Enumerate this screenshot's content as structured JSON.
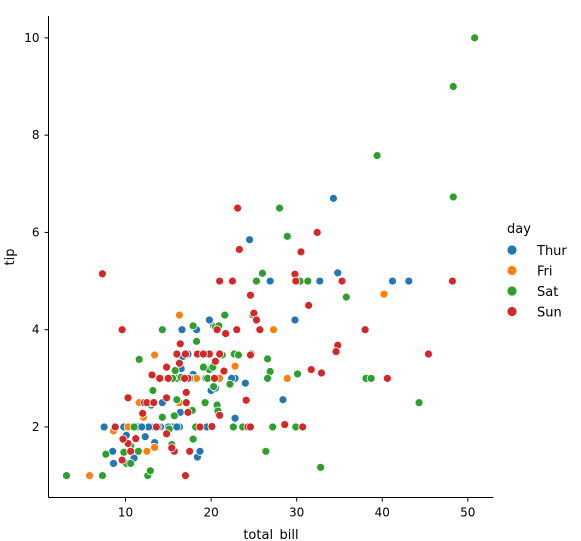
{
  "chart_data": {
    "type": "scatter",
    "title": "",
    "xlabel": "total_bill",
    "ylabel": "tip",
    "xlim": [
      1.0,
      53.0
    ],
    "ylim": [
      0.55,
      10.45
    ],
    "xticks": [
      10,
      20,
      30,
      40,
      50
    ],
    "yticks": [
      2,
      4,
      6,
      8,
      10
    ],
    "grid": false,
    "legend": {
      "title": "day",
      "placement": "right"
    },
    "series": [
      {
        "name": "Thur",
        "color": "#1f77b4",
        "points": [
          [
            34.3,
            6.7
          ],
          [
            41.2,
            5.0
          ],
          [
            43.1,
            5.0
          ],
          [
            24.5,
            5.85
          ],
          [
            26.9,
            5.0
          ],
          [
            32.7,
            5.0
          ],
          [
            34.8,
            5.17
          ],
          [
            20.3,
            4.08
          ],
          [
            18.3,
            4.0
          ],
          [
            19.8,
            4.2
          ],
          [
            16.6,
            4.0
          ],
          [
            29.8,
            4.2
          ],
          [
            17.3,
            3.5
          ],
          [
            16.5,
            3.2
          ],
          [
            19.4,
            3.0
          ],
          [
            22.8,
            3.0
          ],
          [
            17.9,
            3.08
          ],
          [
            20.3,
            3.0
          ],
          [
            24.0,
            2.9
          ],
          [
            20.0,
            2.75
          ],
          [
            28.4,
            2.56
          ],
          [
            16.4,
            2.3
          ],
          [
            22.8,
            2.18
          ],
          [
            18.4,
            1.38
          ],
          [
            18.7,
            1.5
          ],
          [
            16.3,
            2.0
          ],
          [
            15.5,
            2.0
          ],
          [
            13.0,
            2.0
          ],
          [
            12.0,
            2.0
          ],
          [
            11.4,
            2.0
          ],
          [
            10.3,
            2.0
          ],
          [
            9.8,
            2.0
          ],
          [
            7.5,
            2.0
          ],
          [
            8.5,
            1.5
          ],
          [
            10.1,
            1.83
          ],
          [
            8.6,
            1.25
          ],
          [
            12.7,
            2.0
          ],
          [
            13.4,
            1.58
          ],
          [
            13.4,
            1.68
          ],
          [
            10.7,
            2.0
          ],
          [
            11.9,
            2.0
          ],
          [
            14.3,
            2.5
          ],
          [
            12.9,
            2.5
          ],
          [
            14.1,
            2.0
          ],
          [
            15.0,
            2.0
          ],
          [
            13.8,
            2.0
          ],
          [
            16.0,
            2.0
          ],
          [
            12.3,
            1.8
          ],
          [
            9.6,
            1.75
          ],
          [
            11.6,
            1.5
          ],
          [
            19.5,
            2.0
          ],
          [
            17.0,
            2.5
          ],
          [
            16.9,
            3.0
          ],
          [
            24.0,
            2.0
          ],
          [
            11.0,
            1.36
          ],
          [
            16.7,
            3.45
          ],
          [
            17.8,
            3.0
          ],
          [
            20.5,
            2.8
          ],
          [
            15.4,
            3.0
          ],
          [
            22.4,
            3.0
          ]
        ]
      },
      {
        "name": "Fri",
        "color": "#ff7f0e",
        "points": [
          [
            16.3,
            4.3
          ],
          [
            40.2,
            4.73
          ],
          [
            27.3,
            4.0
          ],
          [
            22.8,
            3.25
          ],
          [
            28.9,
            3.0
          ],
          [
            15.4,
            3.0
          ],
          [
            21.0,
            3.0
          ],
          [
            13.4,
            3.48
          ],
          [
            16.3,
            2.5
          ],
          [
            13.3,
            1.58
          ],
          [
            12.5,
            1.5
          ],
          [
            10.3,
            2.0
          ],
          [
            8.6,
            1.92
          ],
          [
            5.8,
            1.0
          ],
          [
            12.1,
            2.2
          ],
          [
            11.6,
            2.5
          ],
          [
            15.9,
            3.0
          ],
          [
            18.3,
            3.0
          ],
          [
            13.4,
            1.58
          ]
        ]
      },
      {
        "name": "Sat",
        "color": "#2ca02c",
        "points": [
          [
            50.8,
            10.0
          ],
          [
            48.3,
            9.0
          ],
          [
            48.3,
            6.73
          ],
          [
            39.4,
            7.58
          ],
          [
            28.0,
            6.5
          ],
          [
            28.9,
            5.92
          ],
          [
            26.0,
            5.16
          ],
          [
            25.3,
            5.0
          ],
          [
            30.4,
            5.0
          ],
          [
            35.8,
            4.67
          ],
          [
            24.9,
            4.3
          ],
          [
            21.6,
            4.3
          ],
          [
            26.6,
            3.4
          ],
          [
            20.5,
            4.06
          ],
          [
            20.9,
            4.08
          ],
          [
            17.9,
            4.08
          ],
          [
            14.3,
            4.0
          ],
          [
            21.3,
            3.48
          ],
          [
            22.7,
            3.5
          ],
          [
            18.3,
            3.76
          ],
          [
            11.6,
            3.39
          ],
          [
            23.2,
            3.48
          ],
          [
            15.8,
            3.16
          ],
          [
            19.8,
            3.18
          ],
          [
            20.2,
            3.23
          ],
          [
            26.9,
            3.14
          ],
          [
            30.1,
            3.09
          ],
          [
            38.1,
            3.0
          ],
          [
            38.7,
            3.0
          ],
          [
            16.0,
            3.0
          ],
          [
            17.5,
            3.0
          ],
          [
            19.6,
            3.0
          ],
          [
            14.2,
            3.0
          ],
          [
            15.5,
            3.0
          ],
          [
            22.2,
            2.88
          ],
          [
            20.3,
            2.83
          ],
          [
            19.3,
            2.5
          ],
          [
            13.2,
            2.75
          ],
          [
            13.0,
            2.45
          ],
          [
            12.5,
            2.5
          ],
          [
            14.3,
            2.2
          ],
          [
            15.7,
            2.23
          ],
          [
            17.8,
            2.34
          ],
          [
            20.7,
            2.45
          ],
          [
            13.1,
            2.5
          ],
          [
            16.0,
            2.56
          ],
          [
            44.3,
            2.5
          ],
          [
            23.7,
            2.0
          ],
          [
            27.2,
            2.0
          ],
          [
            29.9,
            2.0
          ],
          [
            22.6,
            2.0
          ],
          [
            18.2,
            2.0
          ],
          [
            11.0,
            2.0
          ],
          [
            10.6,
            1.61
          ],
          [
            9.8,
            1.48
          ],
          [
            10.3,
            1.66
          ],
          [
            11.5,
            1.5
          ],
          [
            7.7,
            1.44
          ],
          [
            7.3,
            1.0
          ],
          [
            3.1,
            1.0
          ],
          [
            12.6,
            1.0
          ],
          [
            12.9,
            1.1
          ],
          [
            32.8,
            1.17
          ],
          [
            26.4,
            1.5
          ],
          [
            17.9,
            1.75
          ],
          [
            15.4,
            1.64
          ],
          [
            10.1,
            1.25
          ],
          [
            10.6,
            1.25
          ],
          [
            13.9,
            3.0
          ],
          [
            16.5,
            3.02
          ],
          [
            19.1,
            3.23
          ],
          [
            26.6,
            3.0
          ],
          [
            31.3,
            5.0
          ],
          [
            15.1,
            1.96
          ],
          [
            20.8,
            2.33
          ]
        ]
      },
      {
        "name": "Sun",
        "color": "#d62728",
        "points": [
          [
            23.1,
            6.5
          ],
          [
            32.4,
            6.0
          ],
          [
            23.3,
            5.65
          ],
          [
            30.5,
            5.6
          ],
          [
            29.8,
            5.14
          ],
          [
            29.9,
            5.0
          ],
          [
            35.3,
            5.0
          ],
          [
            48.2,
            5.0
          ],
          [
            21.0,
            5.0
          ],
          [
            22.5,
            5.0
          ],
          [
            7.3,
            5.15
          ],
          [
            24.6,
            4.71
          ],
          [
            31.4,
            4.5
          ],
          [
            25.0,
            4.34
          ],
          [
            38.0,
            4.0
          ],
          [
            23.0,
            4.0
          ],
          [
            25.7,
            4.0
          ],
          [
            20.7,
            4.0
          ],
          [
            9.6,
            4.0
          ],
          [
            21.7,
            3.92
          ],
          [
            34.8,
            3.68
          ],
          [
            16.4,
            3.71
          ],
          [
            34.6,
            3.55
          ],
          [
            45.4,
            3.5
          ],
          [
            24.7,
            3.5
          ],
          [
            21.0,
            3.5
          ],
          [
            19.8,
            3.5
          ],
          [
            18.4,
            3.5
          ],
          [
            17.0,
            3.5
          ],
          [
            15.9,
            3.5
          ],
          [
            40.6,
            3.0
          ],
          [
            24.6,
            3.48
          ],
          [
            16.3,
            3.31
          ],
          [
            14.8,
            3.23
          ],
          [
            21.5,
            3.15
          ],
          [
            31.7,
            3.18
          ],
          [
            32.9,
            3.11
          ],
          [
            20.4,
            3.0
          ],
          [
            17.3,
            3.0
          ],
          [
            14.0,
            3.0
          ],
          [
            13.1,
            3.07
          ],
          [
            16.9,
            3.0
          ],
          [
            15.0,
            3.0
          ],
          [
            17.1,
            2.71
          ],
          [
            10.3,
            2.6
          ],
          [
            17.1,
            2.5
          ],
          [
            12.2,
            2.5
          ],
          [
            24.1,
            2.55
          ],
          [
            21.0,
            2.24
          ],
          [
            14.8,
            2.6
          ],
          [
            17.3,
            2.3
          ],
          [
            20.1,
            2.01
          ],
          [
            24.3,
            2.0
          ],
          [
            28.6,
            2.05
          ],
          [
            30.7,
            2.0
          ],
          [
            10.3,
            1.66
          ],
          [
            9.7,
            1.75
          ],
          [
            8.8,
            2.0
          ],
          [
            9.6,
            1.32
          ],
          [
            15.7,
            1.5
          ],
          [
            17.5,
            1.5
          ],
          [
            17.0,
            1.0
          ],
          [
            12.5,
            2.5
          ],
          [
            14.8,
            1.86
          ],
          [
            18.7,
            2.0
          ],
          [
            11.2,
            1.76
          ],
          [
            25.3,
            4.2
          ],
          [
            15.4,
            1.57
          ],
          [
            12.0,
            2.28
          ],
          [
            19.1,
            3.5
          ],
          [
            24.6,
            2.0
          ],
          [
            13.6,
            2.0
          ],
          [
            16.0,
            3.5
          ],
          [
            13.3,
            2.5
          ],
          [
            10.6,
            1.5
          ],
          [
            20.5,
            3.35
          ]
        ]
      }
    ]
  }
}
